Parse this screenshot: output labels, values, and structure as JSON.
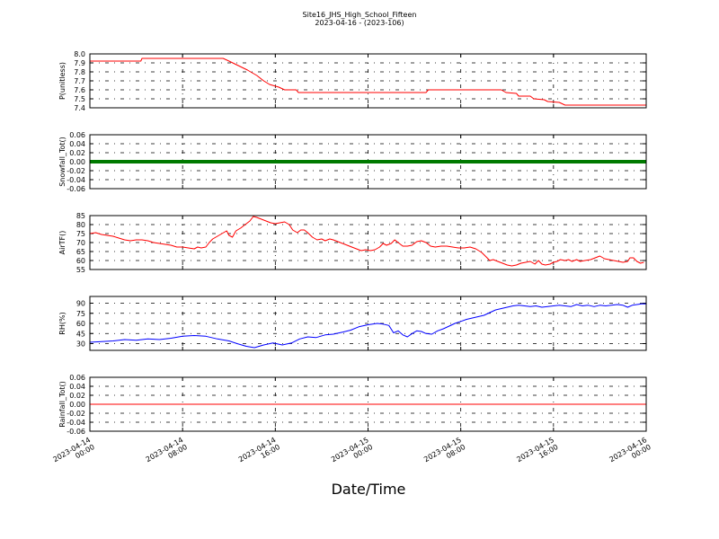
{
  "chart_data": {
    "title": "Site16_JHS_High_School_Fifteen",
    "subtitle": "2023-04-16 - (2023-106)",
    "xlabel": "Date/Time",
    "x_ticks": [
      {
        "line1": "2023-04-14",
        "line2": "00:00",
        "hours": 0
      },
      {
        "line1": "2023-04-14",
        "line2": "08:00",
        "hours": 8
      },
      {
        "line1": "2023-04-14",
        "line2": "16:00",
        "hours": 16
      },
      {
        "line1": "2023-04-15",
        "line2": "00:00",
        "hours": 24
      },
      {
        "line1": "2023-04-15",
        "line2": "08:00",
        "hours": 32
      },
      {
        "line1": "2023-04-15",
        "line2": "16:00",
        "hours": 40
      },
      {
        "line1": "2023-04-16",
        "line2": "00:00",
        "hours": 48
      }
    ],
    "x_range_hours": [
      0,
      48
    ],
    "grid": true,
    "panels": [
      {
        "id": "pressure",
        "type": "line",
        "ylabel": "P(unitless)",
        "ylim": [
          7.4,
          8.0
        ],
        "yticks": [
          "7.4",
          "7.5",
          "7.6",
          "7.7",
          "7.8",
          "7.9",
          "8.0"
        ],
        "color": "#ff0000",
        "points": [
          [
            0,
            7.92
          ],
          [
            4.4,
            7.92
          ],
          [
            4.5,
            7.95
          ],
          [
            11.5,
            7.95
          ],
          [
            12.0,
            7.92
          ],
          [
            12.8,
            7.87
          ],
          [
            13.6,
            7.82
          ],
          [
            14.4,
            7.76
          ],
          [
            15.0,
            7.7
          ],
          [
            15.5,
            7.66
          ],
          [
            16.3,
            7.63
          ],
          [
            16.8,
            7.6
          ],
          [
            17.8,
            7.6
          ],
          [
            18.0,
            7.57
          ],
          [
            29.0,
            7.57
          ],
          [
            29.2,
            7.6
          ],
          [
            35.5,
            7.6
          ],
          [
            35.9,
            7.57
          ],
          [
            36.8,
            7.56
          ],
          [
            37.0,
            7.53
          ],
          [
            38.0,
            7.53
          ],
          [
            38.3,
            7.5
          ],
          [
            39.2,
            7.49
          ],
          [
            39.5,
            7.47
          ],
          [
            40.5,
            7.46
          ],
          [
            41.0,
            7.43
          ],
          [
            48,
            7.43
          ]
        ]
      },
      {
        "id": "snowfall",
        "type": "line",
        "ylabel": "Snowfall_Tot()",
        "ylim": [
          -0.06,
          0.06
        ],
        "yticks": [
          "-0.06",
          "-0.04",
          "-0.02",
          "0.00",
          "0.02",
          "0.04",
          "0.06"
        ],
        "color": "#007a00",
        "line_width": 4,
        "points": [
          [
            0,
            0
          ],
          [
            48,
            0
          ]
        ]
      },
      {
        "id": "airtemp",
        "type": "line",
        "ylabel": "AirTF()",
        "ylim": [
          55,
          85
        ],
        "yticks": [
          "55",
          "60",
          "65",
          "70",
          "75",
          "80",
          "85"
        ],
        "color": "#ff0000",
        "points": [
          [
            0,
            75
          ],
          [
            0.5,
            75.5
          ],
          [
            1,
            74.5
          ],
          [
            1.5,
            74
          ],
          [
            2,
            73.5
          ],
          [
            2.5,
            72.5
          ],
          [
            3,
            71.5
          ],
          [
            3.5,
            71
          ],
          [
            4,
            71.5
          ],
          [
            4.5,
            71.5
          ],
          [
            5,
            71
          ],
          [
            5.5,
            70
          ],
          [
            6,
            69.5
          ],
          [
            6.5,
            69
          ],
          [
            7,
            68.5
          ],
          [
            7.5,
            67.5
          ],
          [
            8,
            67.5
          ],
          [
            8.5,
            67
          ],
          [
            9,
            66.5
          ],
          [
            9.3,
            67.5
          ],
          [
            9.6,
            67
          ],
          [
            10,
            67.5
          ],
          [
            10.3,
            70
          ],
          [
            10.6,
            72
          ],
          [
            11,
            73.5
          ],
          [
            11.4,
            75
          ],
          [
            11.8,
            76.5
          ],
          [
            12,
            74
          ],
          [
            12.3,
            73
          ],
          [
            12.6,
            76.5
          ],
          [
            13,
            78
          ],
          [
            13.4,
            80
          ],
          [
            13.8,
            82
          ],
          [
            14.1,
            84.5
          ],
          [
            14.4,
            84
          ],
          [
            14.8,
            83
          ],
          [
            15.2,
            82
          ],
          [
            15.6,
            81
          ],
          [
            16,
            80.5
          ],
          [
            16.4,
            81
          ],
          [
            16.8,
            81.5
          ],
          [
            17.2,
            80
          ],
          [
            17.5,
            77
          ],
          [
            17.9,
            75.5
          ],
          [
            18.2,
            77
          ],
          [
            18.5,
            77
          ],
          [
            18.8,
            75.5
          ],
          [
            19.2,
            73
          ],
          [
            19.6,
            71.5
          ],
          [
            20,
            72
          ],
          [
            20.3,
            71
          ],
          [
            20.7,
            72
          ],
          [
            21,
            71.5
          ],
          [
            21.4,
            70.5
          ],
          [
            21.8,
            69.5
          ],
          [
            22.2,
            68.5
          ],
          [
            22.6,
            67.5
          ],
          [
            23,
            66.5
          ],
          [
            23.4,
            65.5
          ],
          [
            23.8,
            66
          ],
          [
            24.2,
            65.5
          ],
          [
            24.6,
            66
          ],
          [
            25,
            67.5
          ],
          [
            25.3,
            69.5
          ],
          [
            25.6,
            68.5
          ],
          [
            26,
            69.5
          ],
          [
            26.3,
            71.5
          ],
          [
            26.6,
            70
          ],
          [
            27,
            68
          ],
          [
            27.4,
            68
          ],
          [
            27.8,
            68.5
          ],
          [
            28.2,
            70.5
          ],
          [
            28.6,
            71
          ],
          [
            29,
            70
          ],
          [
            29.4,
            68
          ],
          [
            29.8,
            67.5
          ],
          [
            30.3,
            68
          ],
          [
            30.8,
            68
          ],
          [
            31.3,
            67.5
          ],
          [
            31.8,
            67
          ],
          [
            32.3,
            67
          ],
          [
            32.8,
            67.5
          ],
          [
            33.3,
            66.5
          ],
          [
            33.8,
            64.5
          ],
          [
            34.2,
            62
          ],
          [
            34.5,
            60
          ],
          [
            34.8,
            60.5
          ],
          [
            35.2,
            59.5
          ],
          [
            35.6,
            58.5
          ],
          [
            36,
            57.5
          ],
          [
            36.4,
            57
          ],
          [
            36.8,
            57.5
          ],
          [
            37.2,
            58.5
          ],
          [
            37.6,
            59
          ],
          [
            38,
            59.5
          ],
          [
            38.4,
            58
          ],
          [
            38.7,
            60
          ],
          [
            39,
            58
          ],
          [
            39.3,
            57.5
          ],
          [
            39.7,
            58
          ],
          [
            40,
            59
          ],
          [
            40.3,
            59.5
          ],
          [
            40.6,
            60.5
          ],
          [
            41,
            60
          ],
          [
            41.3,
            60.5
          ],
          [
            41.6,
            59.5
          ],
          [
            42,
            60.5
          ],
          [
            42.3,
            59.5
          ],
          [
            42.7,
            60
          ],
          [
            43.2,
            60.5
          ],
          [
            43.6,
            61.5
          ],
          [
            44,
            62.5
          ],
          [
            44.4,
            61
          ],
          [
            44.8,
            60.5
          ],
          [
            45.2,
            60
          ],
          [
            45.6,
            59.5
          ],
          [
            46,
            59
          ],
          [
            46.4,
            59.5
          ],
          [
            46.6,
            61.5
          ],
          [
            46.9,
            61.5
          ],
          [
            47.2,
            59.5
          ],
          [
            47.5,
            58.5
          ],
          [
            47.8,
            59
          ]
        ]
      },
      {
        "id": "rh",
        "type": "line",
        "ylabel": "RH(%)",
        "ylim": [
          20,
          100
        ],
        "yticks": [
          "30",
          "45",
          "60",
          "75",
          "90"
        ],
        "tick_values": [
          30,
          45,
          60,
          75,
          90
        ],
        "color": "#0000ff",
        "points": [
          [
            0,
            32
          ],
          [
            1,
            33
          ],
          [
            2,
            34
          ],
          [
            3,
            36
          ],
          [
            4,
            35
          ],
          [
            5,
            37
          ],
          [
            6,
            36
          ],
          [
            7,
            38
          ],
          [
            8,
            41
          ],
          [
            9,
            42
          ],
          [
            10,
            41
          ],
          [
            11,
            37
          ],
          [
            12,
            34
          ],
          [
            12.7,
            30
          ],
          [
            13.5,
            26
          ],
          [
            14.2,
            24
          ],
          [
            15,
            28
          ],
          [
            15.8,
            31
          ],
          [
            16.6,
            28
          ],
          [
            17.4,
            31
          ],
          [
            18.1,
            37
          ],
          [
            18.8,
            40
          ],
          [
            19.5,
            39
          ],
          [
            20.3,
            43
          ],
          [
            21,
            44
          ],
          [
            21.8,
            47
          ],
          [
            22.5,
            50
          ],
          [
            23.2,
            55
          ],
          [
            24,
            58
          ],
          [
            24.8,
            60
          ],
          [
            25.3,
            59
          ],
          [
            25.8,
            57
          ],
          [
            26.2,
            46
          ],
          [
            26.6,
            49
          ],
          [
            27,
            43
          ],
          [
            27.4,
            40
          ],
          [
            27.8,
            45
          ],
          [
            28.2,
            49
          ],
          [
            28.6,
            48
          ],
          [
            29,
            45
          ],
          [
            29.5,
            44
          ],
          [
            30,
            49
          ],
          [
            30.5,
            52
          ],
          [
            31,
            56
          ],
          [
            31.5,
            60
          ],
          [
            32,
            63
          ],
          [
            32.5,
            66
          ],
          [
            33,
            68
          ],
          [
            33.5,
            70
          ],
          [
            34,
            72
          ],
          [
            34.5,
            76
          ],
          [
            35,
            80
          ],
          [
            35.5,
            82
          ],
          [
            36,
            84
          ],
          [
            36.5,
            86
          ],
          [
            37,
            87
          ],
          [
            37.5,
            86
          ],
          [
            38,
            85
          ],
          [
            38.5,
            86
          ],
          [
            39,
            84
          ],
          [
            39.5,
            85
          ],
          [
            40,
            86
          ],
          [
            40.5,
            87
          ],
          [
            41,
            86
          ],
          [
            41.5,
            85
          ],
          [
            42,
            88
          ],
          [
            42.5,
            86
          ],
          [
            43,
            87
          ],
          [
            43.5,
            85
          ],
          [
            44,
            87
          ],
          [
            44.5,
            86
          ],
          [
            45,
            87
          ],
          [
            45.5,
            88
          ],
          [
            46,
            87
          ],
          [
            46.4,
            84
          ],
          [
            46.8,
            87
          ],
          [
            47.2,
            88
          ],
          [
            47.6,
            89
          ],
          [
            48,
            89
          ]
        ]
      },
      {
        "id": "rainfall",
        "type": "line",
        "ylabel": "Rainfall_Tot()",
        "ylim": [
          -0.06,
          0.06
        ],
        "yticks": [
          "-0.06",
          "-0.04",
          "-0.02",
          "0.00",
          "0.02",
          "0.04",
          "0.06"
        ],
        "color": "#ff0000",
        "points": [
          [
            0,
            0
          ],
          [
            48,
            0
          ]
        ]
      }
    ]
  }
}
